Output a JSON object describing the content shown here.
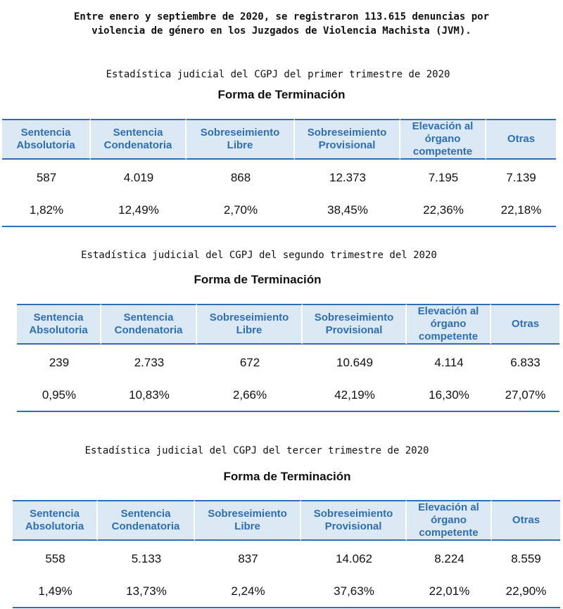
{
  "intro": "Entre enero y septiembre de 2020, se registraron 113.615 denuncias por\nviolencia de género en los Juzgados de Violencia Machista (JVM).",
  "columns": [
    "Sentencia\nAbsolutoria",
    "Sentencia\nCondenatoria",
    "Sobreseimiento\nLibre",
    "Sobreseimiento\nProvisional",
    "Elevación al\nórgano\ncompetente",
    "Otras"
  ],
  "sections": [
    {
      "caption": "Estadística judicial del CGPJ del primer trimestre de 2020",
      "title": "Forma de Terminación",
      "counts": [
        "587",
        "4.019",
        "868",
        "12.373",
        "7.195",
        "7.139"
      ],
      "percents": [
        "1,82%",
        "12,49%",
        "2,70%",
        "38,45%",
        "22,36%",
        "22,18%"
      ]
    },
    {
      "caption": "Estadística judicial del CGPJ del segundo trimestre del 2020",
      "title": "Forma de Terminación",
      "counts": [
        "239",
        "2.733",
        "672",
        "10.649",
        "4.114",
        "6.833"
      ],
      "percents": [
        "0,95%",
        "10,83%",
        "2,66%",
        "42,19%",
        "16,30%",
        "27,07%"
      ]
    },
    {
      "caption": "Estadística judicial del CGPJ del tercer trimestre de 2020",
      "title": "Forma de Terminación",
      "counts": [
        "558",
        "5.133",
        "837",
        "14.062",
        "8.224",
        "8.559"
      ],
      "percents": [
        "1,49%",
        "13,73%",
        "2,24%",
        "37,63%",
        "22,01%",
        "22,90%"
      ]
    }
  ],
  "colors": {
    "header_bg": "#dbe9f5",
    "header_text": "#2f6eb5",
    "rule": "#2f6eb5"
  }
}
